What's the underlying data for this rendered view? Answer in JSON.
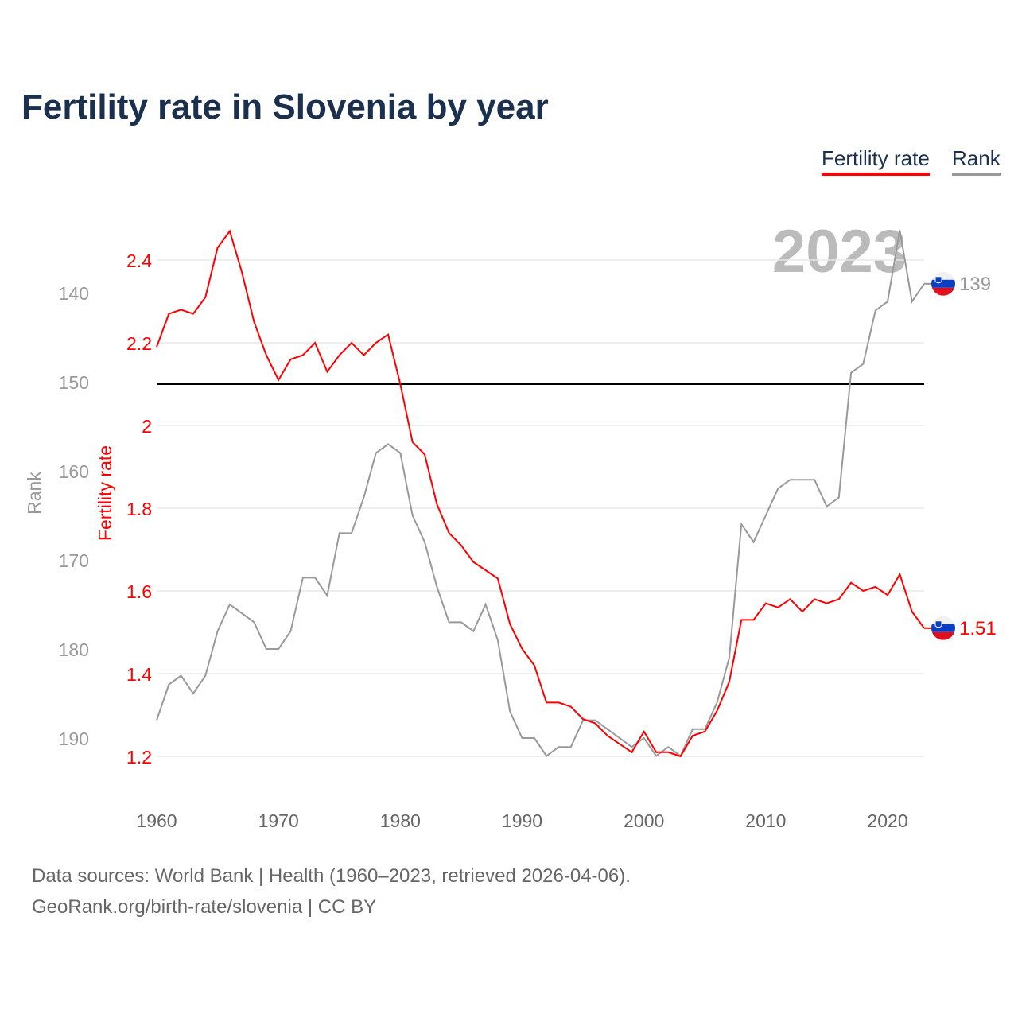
{
  "title": "Fertility rate in Slovenia by year",
  "legend": {
    "fertility": "Fertility rate",
    "rank": "Rank"
  },
  "source_line1": "Data sources: World Bank | Health (1960–2023, retrieved 2026-04-06).",
  "source_line2": "GeoRank.org/birth-rate/slovenia | CC BY",
  "chart_data": {
    "type": "line",
    "title": "Fertility rate in Slovenia by year",
    "year_label": "2023",
    "xlabel": "",
    "y_left_label": "Fertility rate",
    "y_rank_label": "Rank",
    "x_ticks": [
      "1960",
      "1970",
      "1980",
      "1990",
      "2000",
      "2010",
      "2020"
    ],
    "fert_ticks": [
      "2.4",
      "2.2",
      "2",
      "1.8",
      "1.6",
      "1.4",
      "1.2"
    ],
    "rank_ticks": [
      "140",
      "150",
      "160",
      "170",
      "180",
      "190"
    ],
    "xlim": [
      1960,
      2023
    ],
    "fert_lim": [
      1.2,
      2.4
    ],
    "rank_lim": [
      140,
      190
    ],
    "reference_line": {
      "series": "fertility",
      "value": 2.1
    },
    "colors": {
      "fertility": "#ff0000",
      "rank": "#999999",
      "reference": "#000000"
    },
    "x": [
      1960,
      1961,
      1962,
      1963,
      1964,
      1965,
      1966,
      1967,
      1968,
      1969,
      1970,
      1971,
      1972,
      1973,
      1974,
      1975,
      1976,
      1977,
      1978,
      1979,
      1980,
      1981,
      1982,
      1983,
      1984,
      1985,
      1986,
      1987,
      1988,
      1989,
      1990,
      1991,
      1992,
      1993,
      1994,
      1995,
      1996,
      1997,
      1998,
      1999,
      2000,
      2001,
      2002,
      2003,
      2004,
      2005,
      2006,
      2007,
      2008,
      2009,
      2010,
      2011,
      2012,
      2013,
      2014,
      2015,
      2016,
      2017,
      2018,
      2019,
      2020,
      2021,
      2022,
      2023
    ],
    "series": [
      {
        "name": "Fertility rate",
        "end_label": "1.51",
        "values": [
          2.19,
          2.27,
          2.28,
          2.27,
          2.31,
          2.43,
          2.47,
          2.37,
          2.25,
          2.17,
          2.11,
          2.16,
          2.17,
          2.2,
          2.13,
          2.17,
          2.2,
          2.17,
          2.2,
          2.22,
          2.1,
          1.96,
          1.93,
          1.81,
          1.74,
          1.71,
          1.67,
          1.65,
          1.63,
          1.52,
          1.46,
          1.42,
          1.33,
          1.33,
          1.32,
          1.29,
          1.28,
          1.25,
          1.23,
          1.21,
          1.26,
          1.21,
          1.21,
          1.2,
          1.25,
          1.26,
          1.31,
          1.38,
          1.53,
          1.53,
          1.57,
          1.56,
          1.58,
          1.55,
          1.58,
          1.57,
          1.58,
          1.62,
          1.6,
          1.61,
          1.59,
          1.64,
          1.55,
          1.51
        ]
      },
      {
        "name": "Rank",
        "end_label": "139",
        "values": [
          188,
          184,
          183,
          185,
          183,
          178,
          175,
          176,
          177,
          180,
          180,
          178,
          172,
          172,
          174,
          167,
          167,
          163,
          158,
          157,
          158,
          165,
          168,
          173,
          177,
          177,
          178,
          175,
          179,
          187,
          190,
          190,
          192,
          191,
          191,
          188,
          188,
          189,
          190,
          191,
          190,
          192,
          191,
          192,
          189,
          189,
          186,
          181,
          166,
          168,
          165,
          162,
          161,
          161,
          161,
          164,
          163,
          149,
          148,
          142,
          141,
          133,
          141,
          139
        ]
      }
    ]
  }
}
